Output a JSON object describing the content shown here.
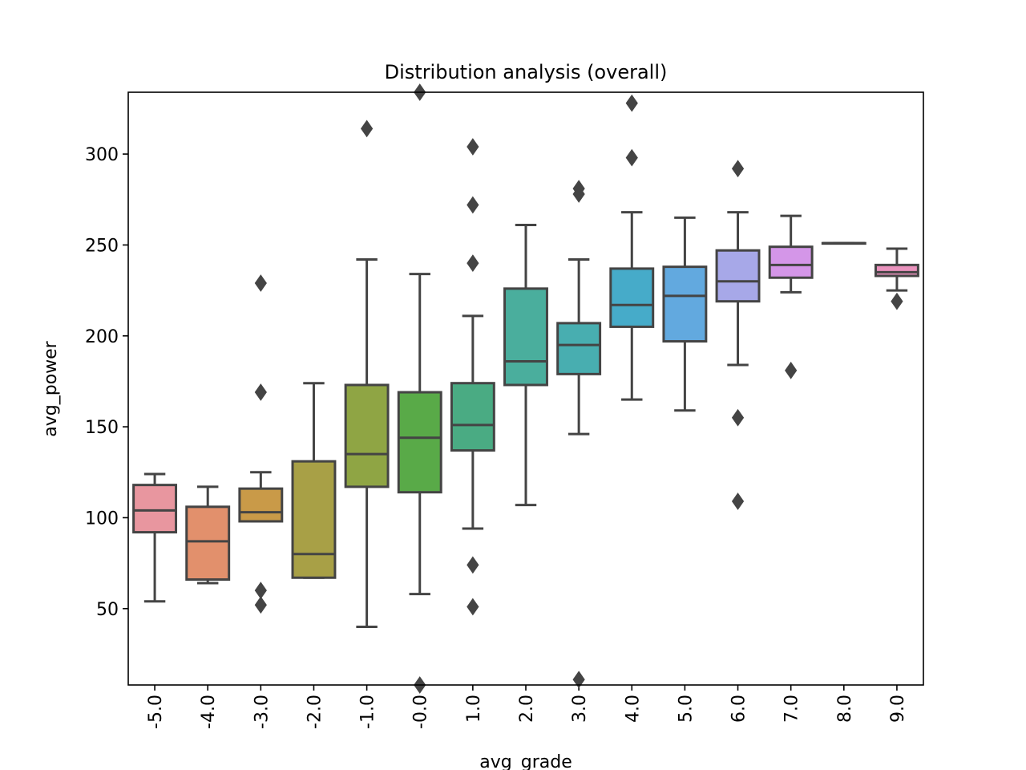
{
  "chart_data": {
    "type": "box",
    "title": "Distribution analysis (overall)",
    "xlabel": "avg_grade",
    "ylabel": "avg_power",
    "ylim": [
      8,
      334
    ],
    "yticks": [
      50,
      100,
      150,
      200,
      250,
      300
    ],
    "grid": false,
    "categories": [
      "-5.0",
      "-4.0",
      "-3.0",
      "-2.0",
      "-1.0",
      "-0.0",
      "1.0",
      "2.0",
      "3.0",
      "4.0",
      "5.0",
      "6.0",
      "7.0",
      "8.0",
      "9.0"
    ],
    "boxes": [
      {
        "category": "-5.0",
        "color": "#e8969f",
        "q1": 92,
        "median": 104,
        "q3": 118,
        "whisker_low": 54,
        "whisker_high": 124,
        "outliers": []
      },
      {
        "category": "-4.0",
        "color": "#e2906c",
        "q1": 66,
        "median": 87,
        "q3": 106,
        "whisker_low": 64,
        "whisker_high": 117,
        "outliers": []
      },
      {
        "category": "-3.0",
        "color": "#c99a48",
        "q1": 98,
        "median": 103,
        "q3": 116,
        "whisker_low": 98,
        "whisker_high": 125,
        "outliers": [
          229,
          169,
          60,
          52
        ]
      },
      {
        "category": "-2.0",
        "color": "#a8a046",
        "q1": 67,
        "median": 80,
        "q3": 131,
        "whisker_low": 67,
        "whisker_high": 174,
        "outliers": []
      },
      {
        "category": "-1.0",
        "color": "#8fa544",
        "q1": 117,
        "median": 135,
        "q3": 173,
        "whisker_low": 40,
        "whisker_high": 242,
        "outliers": [
          314
        ]
      },
      {
        "category": "-0.0",
        "color": "#59aa48",
        "q1": 114,
        "median": 144,
        "q3": 169,
        "whisker_low": 58,
        "whisker_high": 234,
        "outliers": [
          334,
          8
        ]
      },
      {
        "category": "1.0",
        "color": "#4aab83",
        "q1": 137,
        "median": 151,
        "q3": 174,
        "whisker_low": 94,
        "whisker_high": 211,
        "outliers": [
          304,
          272,
          240,
          74,
          51
        ]
      },
      {
        "category": "2.0",
        "color": "#4aae9d",
        "q1": 173,
        "median": 186,
        "q3": 226,
        "whisker_low": 107,
        "whisker_high": 261,
        "outliers": []
      },
      {
        "category": "3.0",
        "color": "#48aeb0",
        "q1": 179,
        "median": 195,
        "q3": 207,
        "whisker_low": 146,
        "whisker_high": 242,
        "outliers": [
          281,
          278,
          11
        ]
      },
      {
        "category": "4.0",
        "color": "#46abc9",
        "q1": 205,
        "median": 217,
        "q3": 237,
        "whisker_low": 165,
        "whisker_high": 268,
        "outliers": [
          328,
          298
        ]
      },
      {
        "category": "5.0",
        "color": "#62a9df",
        "q1": 197,
        "median": 222,
        "q3": 238,
        "whisker_low": 159,
        "whisker_high": 265,
        "outliers": []
      },
      {
        "category": "6.0",
        "color": "#a7a8e8",
        "q1": 219,
        "median": 230,
        "q3": 247,
        "whisker_low": 184,
        "whisker_high": 268,
        "outliers": [
          292,
          155,
          109
        ]
      },
      {
        "category": "7.0",
        "color": "#d496e8",
        "q1": 232,
        "median": 239,
        "q3": 249,
        "whisker_low": 224,
        "whisker_high": 266,
        "outliers": [
          181
        ]
      },
      {
        "category": "8.0",
        "color": "#e191d6",
        "q1": 251,
        "median": 251,
        "q3": 251,
        "whisker_low": 251,
        "whisker_high": 251,
        "outliers": []
      },
      {
        "category": "9.0",
        "color": "#ea92bd",
        "q1": 233,
        "median": 235,
        "q3": 239,
        "whisker_low": 225,
        "whisker_high": 248,
        "outliers": [
          219
        ]
      }
    ]
  }
}
